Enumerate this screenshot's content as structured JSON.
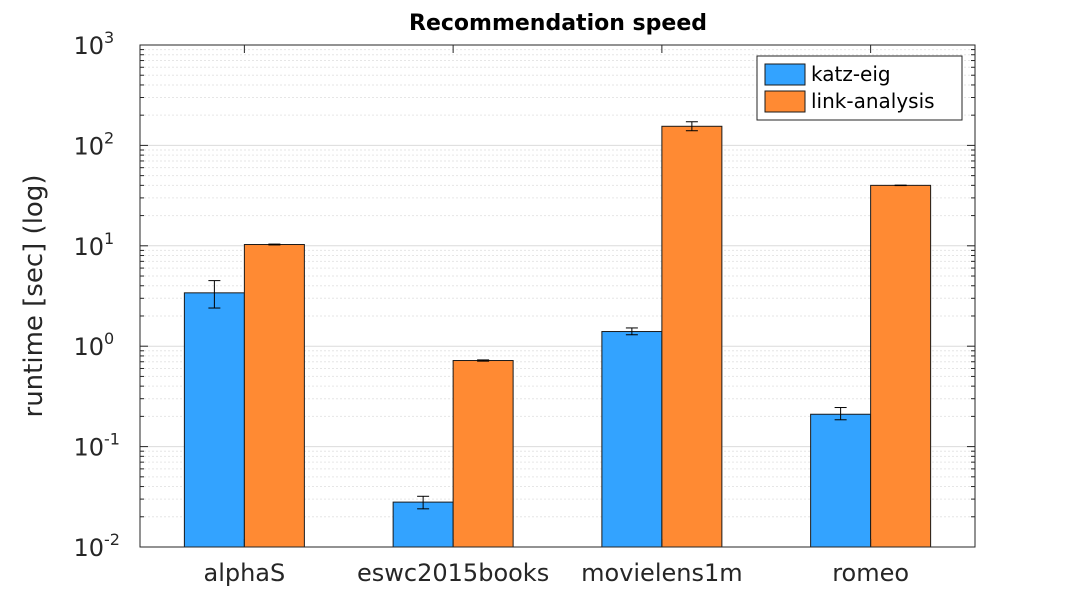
{
  "chart_data": {
    "type": "bar",
    "title": "Recommendation speed",
    "ylabel": "runtime [sec] (log)",
    "xlabel": "",
    "yscale": "log",
    "ylim": [
      0.01,
      1000
    ],
    "yticks": [
      {
        "value": 0.01,
        "base": "10",
        "exp": "-2"
      },
      {
        "value": 0.1,
        "base": "10",
        "exp": "-1"
      },
      {
        "value": 1,
        "base": "10",
        "exp": "0"
      },
      {
        "value": 10,
        "base": "10",
        "exp": "1"
      },
      {
        "value": 100,
        "base": "10",
        "exp": "2"
      },
      {
        "value": 1000,
        "base": "10",
        "exp": "3"
      }
    ],
    "categories": [
      "alphaS",
      "eswc2015books",
      "movielens1m",
      "romeo"
    ],
    "series": [
      {
        "name": "katz-eig",
        "color": "#33a3ff",
        "values": [
          3.4,
          0.028,
          1.4,
          0.21
        ],
        "err_low": [
          2.4,
          0.024,
          1.3,
          0.185
        ],
        "err_high": [
          4.5,
          0.032,
          1.52,
          0.245
        ]
      },
      {
        "name": "link-analysis",
        "color": "#ff8a33",
        "values": [
          10.3,
          0.72,
          155,
          40
        ],
        "err_low": [
          10.2,
          0.71,
          140,
          39.8
        ],
        "err_high": [
          10.4,
          0.73,
          172,
          40.2
        ]
      }
    ],
    "grid": true,
    "legend_position": "top-right"
  }
}
